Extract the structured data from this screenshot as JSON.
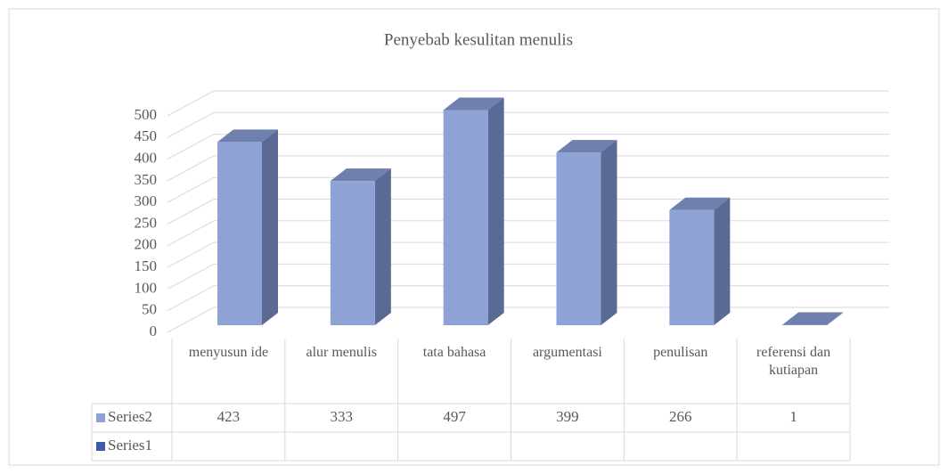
{
  "chart_data": {
    "type": "bar3d",
    "title": "Penyebab kesulitan menulis",
    "categories": [
      "menyusun ide",
      "alur menulis",
      "tata bahasa",
      "argumentasi",
      "penulisan",
      "referensi dan kutiapan"
    ],
    "series": [
      {
        "name": "Series2",
        "color": "#8fa2d6",
        "values": [
          423,
          333,
          497,
          399,
          266,
          1
        ]
      },
      {
        "name": "Series1",
        "color": "#3d5ca8",
        "values": [
          null,
          null,
          null,
          null,
          null,
          null
        ]
      }
    ],
    "ylim": [
      0,
      500
    ],
    "yticks": [
      0,
      50,
      100,
      150,
      200,
      250,
      300,
      350,
      400,
      450,
      500
    ],
    "grid": true,
    "data_table": true
  }
}
